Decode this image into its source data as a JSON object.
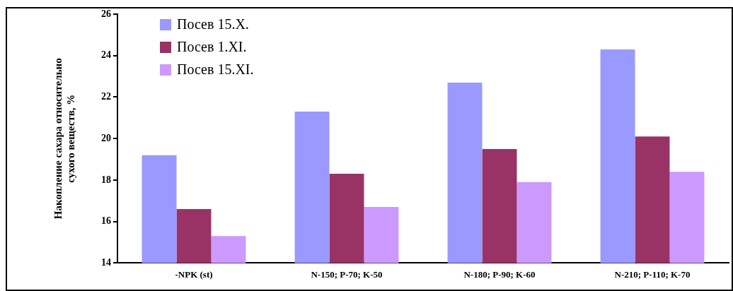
{
  "chart_data": {
    "type": "bar",
    "ylabel": "Накопление сахара относительно\nсухого веществ, %",
    "categories": [
      "-NPK (st)",
      "N-150; P-70; K-50",
      "N-180; P-90; K-60",
      "N-210; P-110; K-70"
    ],
    "series": [
      {
        "name": "Посев 15.X.",
        "color": "#9999ff",
        "values": [
          19.2,
          21.3,
          22.7,
          24.3
        ]
      },
      {
        "name": "Посев 1.XI.",
        "color": "#993366",
        "values": [
          16.6,
          18.3,
          19.5,
          20.1
        ]
      },
      {
        "name": "Посев 15.XI.",
        "color": "#cc99ff",
        "values": [
          15.3,
          16.7,
          17.9,
          18.4
        ]
      }
    ],
    "ylim": [
      14,
      26
    ],
    "yticks": [
      14,
      16,
      18,
      20,
      22,
      24,
      26
    ],
    "grid": false,
    "legend": "top left"
  }
}
